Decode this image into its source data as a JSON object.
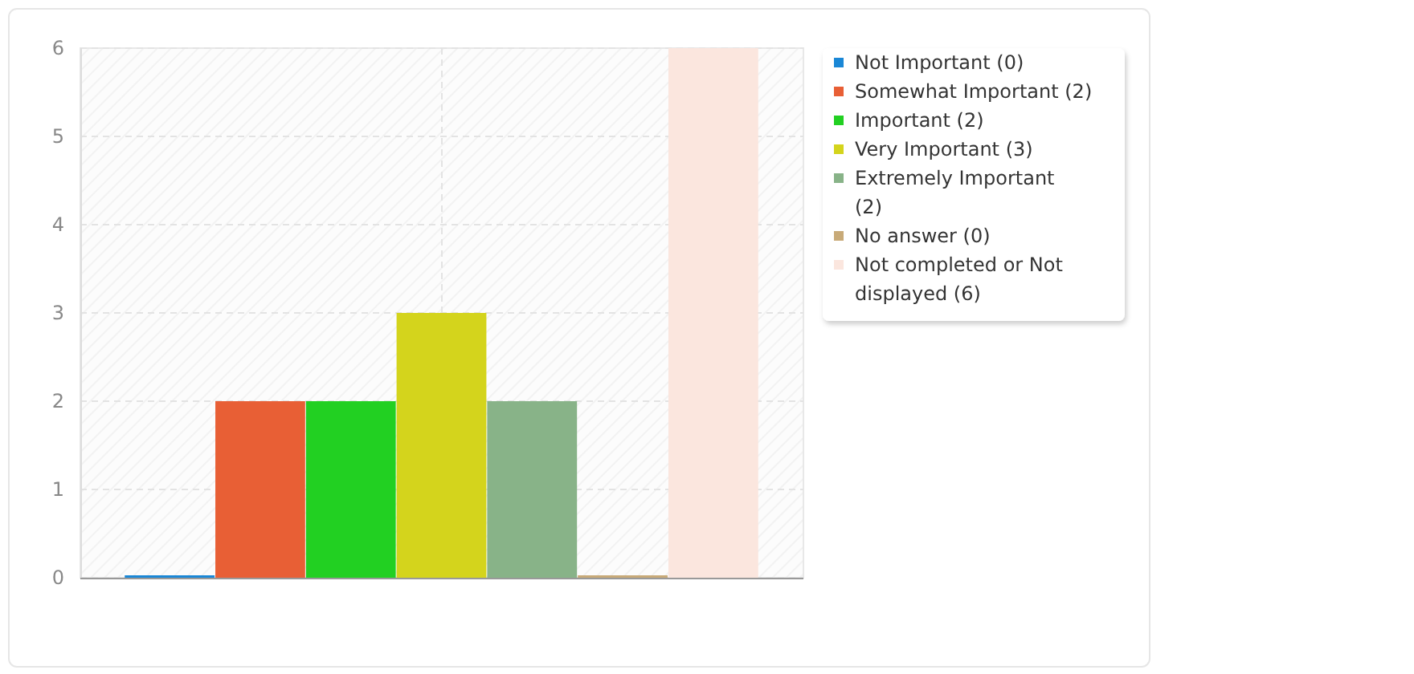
{
  "chart_data": {
    "type": "bar",
    "categories": [
      null
    ],
    "series": [
      {
        "name": "Not Important (0)",
        "color": "#1a87d6",
        "values": [
          0
        ]
      },
      {
        "name": "Somewhat Important (2)",
        "color": "#e85f35",
        "values": [
          2
        ]
      },
      {
        "name": "Important (2)",
        "color": "#22d022",
        "values": [
          2
        ]
      },
      {
        "name": "Very Important (3)",
        "color": "#d4d41c",
        "values": [
          3
        ]
      },
      {
        "name": "Extremely Important (2)",
        "color": "#88b388",
        "values": [
          2
        ]
      },
      {
        "name": "No answer (0)",
        "color": "#c8aa78",
        "values": [
          0
        ]
      },
      {
        "name": "Not completed or Not displayed (6)",
        "color": "#fbe6de",
        "values": [
          6
        ]
      }
    ],
    "ylim": [
      0,
      6
    ],
    "yticks": [
      0,
      1,
      2,
      3,
      4,
      5,
      6
    ],
    "grid": true,
    "legend": "right"
  }
}
